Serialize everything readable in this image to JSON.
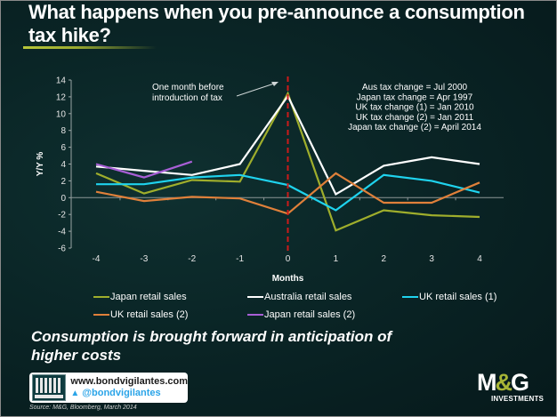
{
  "title": "What happens when you pre-announce a consumption tax hike?",
  "subtitle": "Consumption is brought forward in anticipation of higher costs",
  "footer": {
    "website": "www.bondvigilantes.com",
    "twitter": "@bondvigilantes",
    "twitter_icon": "twitter-bird-icon",
    "bv_logo_icon": "bond-vigilantes-logo",
    "source": "Source: M&G, Bloomberg, March 2014"
  },
  "brand": {
    "name_left": "M",
    "name_amp": "&",
    "name_right": "G",
    "tagline": "INVESTMENTS",
    "accent_color": "#a8b536"
  },
  "chart_data": {
    "type": "line",
    "title": "What happens when you pre-announce a consumption tax hike?",
    "xlabel": "Months",
    "ylabel": "Y/Y %",
    "x": [
      -4,
      -3,
      -2,
      -1,
      0,
      1,
      2,
      3,
      4
    ],
    "x_tick_labels": [
      "-4",
      "-3",
      "-2",
      "-1",
      "0",
      "1",
      "2",
      "3",
      "4"
    ],
    "ylim": [
      -6,
      14
    ],
    "y_ticks": [
      14,
      12,
      10,
      8,
      6,
      4,
      2,
      0,
      -2,
      -4,
      -6
    ],
    "grid": false,
    "legend_position": "bottom",
    "series": [
      {
        "name": "Japan retail sales",
        "color": "#9fae2c",
        "values": [
          2.9,
          0.5,
          2.1,
          1.9,
          12.4,
          -3.9,
          -1.5,
          -2.1,
          -2.3
        ]
      },
      {
        "name": "Australia retail sales",
        "color": "#ffffff",
        "values": [
          3.7,
          3.2,
          2.7,
          4.0,
          12.1,
          0.4,
          3.8,
          4.8,
          4.0
        ]
      },
      {
        "name": "UK retail sales (1)",
        "color": "#1fd3ee",
        "values": [
          1.6,
          1.6,
          2.4,
          2.7,
          1.5,
          -1.5,
          2.7,
          2.0,
          0.6
        ]
      },
      {
        "name": "UK retail sales (2)",
        "color": "#e0803a",
        "values": [
          0.7,
          -0.4,
          0.1,
          -0.1,
          -1.9,
          2.9,
          -0.6,
          -0.6,
          1.8
        ]
      },
      {
        "name": "Japan retail sales (2)",
        "color": "#a85fd6",
        "values": [
          4.0,
          2.4,
          4.3,
          null,
          null,
          null,
          null,
          null,
          null
        ]
      }
    ],
    "reference_line": {
      "x": 0,
      "color": "#cc1a1a",
      "style": "dashed"
    },
    "annotations": [
      {
        "text": [
          "One month before",
          "introduction of tax"
        ],
        "points_to_x": 0,
        "arrow": true
      },
      {
        "text": [
          "Aus tax change = Jul 2000",
          "Japan tax change = Apr 1997",
          "UK tax change (1) = Jan 2010",
          "UK tax change (2) = Jan 2011",
          "Japan tax change (2) = April 2014"
        ]
      }
    ]
  }
}
